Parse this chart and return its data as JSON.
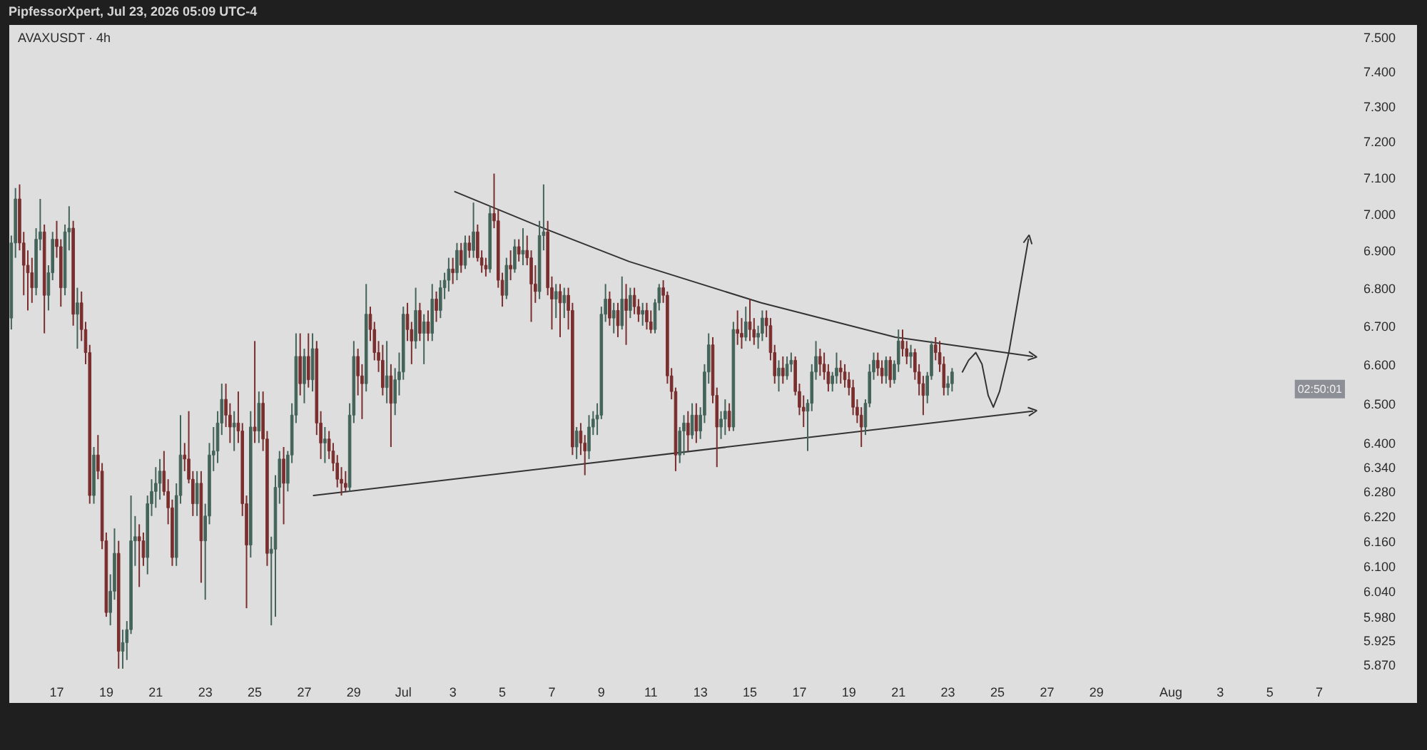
{
  "chart_data": {
    "type": "candlestick",
    "title": "AVAXUSDT · 4h",
    "annotations": [
      "PipfessorXpert, Jul 23, 2026 05:09 UTC-4",
      "02:50:01"
    ],
    "log": true,
    "grid": false,
    "xlim": [
      "2026-06-15T02:00",
      "2026-08-08T05:00"
    ],
    "ylim": [
      5.855,
      7.535
    ],
    "xticks": [
      {
        "value": "2026-06-17",
        "label": "17"
      },
      {
        "value": "2026-06-19",
        "label": "19"
      },
      {
        "value": "2026-06-21",
        "label": "21"
      },
      {
        "value": "2026-06-23",
        "label": "23"
      },
      {
        "value": "2026-06-25",
        "label": "25"
      },
      {
        "value": "2026-06-27",
        "label": "27"
      },
      {
        "value": "2026-06-29",
        "label": "29"
      },
      {
        "value": "2026-07-01",
        "label": "Jul"
      },
      {
        "value": "2026-07-03",
        "label": "3"
      },
      {
        "value": "2026-07-05",
        "label": "5"
      },
      {
        "value": "2026-07-07",
        "label": "7"
      },
      {
        "value": "2026-07-09",
        "label": "9"
      },
      {
        "value": "2026-07-11",
        "label": "11"
      },
      {
        "value": "2026-07-13",
        "label": "13"
      },
      {
        "value": "2026-07-15",
        "label": "15"
      },
      {
        "value": "2026-07-17",
        "label": "17"
      },
      {
        "value": "2026-07-19",
        "label": "19"
      },
      {
        "value": "2026-07-21",
        "label": "21"
      },
      {
        "value": "2026-07-23",
        "label": "23"
      },
      {
        "value": "2026-07-25",
        "label": "25"
      },
      {
        "value": "2026-07-27",
        "label": "27"
      },
      {
        "value": "2026-07-29",
        "label": "29"
      },
      {
        "value": "2026-08-01",
        "label": "Aug"
      },
      {
        "value": "2026-08-03",
        "label": "3"
      },
      {
        "value": "2026-08-05",
        "label": "5"
      },
      {
        "value": "2026-08-07",
        "label": "7"
      }
    ],
    "yticks": [
      {
        "value": 7.5,
        "label": "7.500"
      },
      {
        "value": 7.4,
        "label": "7.400"
      },
      {
        "value": 7.3,
        "label": "7.300"
      },
      {
        "value": 7.2,
        "label": "7.200"
      },
      {
        "value": 7.1,
        "label": "7.100"
      },
      {
        "value": 7.0,
        "label": "7.000"
      },
      {
        "value": 6.9,
        "label": "6.900"
      },
      {
        "value": 6.8,
        "label": "6.800"
      },
      {
        "value": 6.7,
        "label": "6.700"
      },
      {
        "value": 6.6,
        "label": "6.600"
      },
      {
        "value": 6.5,
        "label": "6.500"
      },
      {
        "value": 6.4,
        "label": "6.400"
      },
      {
        "value": 6.34,
        "label": "6.340"
      },
      {
        "value": 6.28,
        "label": "6.280"
      },
      {
        "value": 6.22,
        "label": "6.220"
      },
      {
        "value": 6.16,
        "label": "6.160"
      },
      {
        "value": 6.1,
        "label": "6.100"
      },
      {
        "value": 6.04,
        "label": "6.040"
      },
      {
        "value": 5.98,
        "label": "5.980"
      },
      {
        "value": 5.925,
        "label": "5.925"
      },
      {
        "value": 5.87,
        "label": "5.870"
      }
    ],
    "x": [
      "2026-06-15T04:00",
      "2026-06-15T08:00",
      "2026-06-15T12:00",
      "2026-06-15T16:00",
      "2026-06-15T20:00",
      "2026-06-16T00:00",
      "2026-06-16T04:00",
      "2026-06-16T08:00",
      "2026-06-16T12:00",
      "2026-06-16T16:00",
      "2026-06-16T20:00",
      "2026-06-17T00:00",
      "2026-06-17T04:00",
      "2026-06-17T08:00",
      "2026-06-17T12:00",
      "2026-06-17T16:00",
      "2026-06-17T20:00",
      "2026-06-18T00:00",
      "2026-06-18T04:00",
      "2026-06-18T08:00",
      "2026-06-18T12:00",
      "2026-06-18T16:00",
      "2026-06-18T20:00",
      "2026-06-19T00:00",
      "2026-06-19T04:00",
      "2026-06-19T08:00",
      "2026-06-19T12:00",
      "2026-06-19T16:00",
      "2026-06-19T20:00",
      "2026-06-20T00:00",
      "2026-06-20T04:00",
      "2026-06-20T08:00",
      "2026-06-20T12:00",
      "2026-06-20T16:00",
      "2026-06-20T20:00",
      "2026-06-21T00:00",
      "2026-06-21T04:00",
      "2026-06-21T08:00",
      "2026-06-21T12:00",
      "2026-06-21T16:00",
      "2026-06-21T20:00",
      "2026-06-22T00:00",
      "2026-06-22T04:00",
      "2026-06-22T08:00",
      "2026-06-22T12:00",
      "2026-06-22T16:00",
      "2026-06-22T20:00",
      "2026-06-23T00:00",
      "2026-06-23T04:00",
      "2026-06-23T08:00",
      "2026-06-23T12:00",
      "2026-06-23T16:00",
      "2026-06-23T20:00",
      "2026-06-24T00:00",
      "2026-06-24T04:00",
      "2026-06-24T08:00",
      "2026-06-24T12:00",
      "2026-06-24T16:00",
      "2026-06-24T20:00",
      "2026-06-25T00:00",
      "2026-06-25T04:00",
      "2026-06-25T08:00",
      "2026-06-25T12:00",
      "2026-06-25T16:00",
      "2026-06-25T20:00",
      "2026-06-26T00:00",
      "2026-06-26T04:00",
      "2026-06-26T08:00",
      "2026-06-26T12:00",
      "2026-06-26T16:00",
      "2026-06-26T20:00",
      "2026-06-27T00:00",
      "2026-06-27T04:00",
      "2026-06-27T08:00",
      "2026-06-27T12:00",
      "2026-06-27T16:00",
      "2026-06-27T20:00",
      "2026-06-28T00:00",
      "2026-06-28T04:00",
      "2026-06-28T08:00",
      "2026-06-28T12:00",
      "2026-06-28T16:00",
      "2026-06-28T20:00",
      "2026-06-29T00:00",
      "2026-06-29T04:00",
      "2026-06-29T08:00",
      "2026-06-29T12:00",
      "2026-06-29T16:00",
      "2026-06-29T20:00",
      "2026-06-30T00:00",
      "2026-06-30T04:00",
      "2026-06-30T08:00",
      "2026-06-30T12:00",
      "2026-06-30T16:00",
      "2026-06-30T20:00",
      "2026-07-01T00:00",
      "2026-07-01T04:00",
      "2026-07-01T08:00",
      "2026-07-01T12:00",
      "2026-07-01T16:00",
      "2026-07-01T20:00",
      "2026-07-02T00:00",
      "2026-07-02T04:00",
      "2026-07-02T08:00",
      "2026-07-02T12:00",
      "2026-07-02T16:00",
      "2026-07-02T20:00",
      "2026-07-03T00:00",
      "2026-07-03T04:00",
      "2026-07-03T08:00",
      "2026-07-03T12:00",
      "2026-07-03T16:00",
      "2026-07-03T20:00",
      "2026-07-04T00:00",
      "2026-07-04T04:00",
      "2026-07-04T08:00",
      "2026-07-04T12:00",
      "2026-07-04T16:00",
      "2026-07-04T20:00",
      "2026-07-05T00:00",
      "2026-07-05T04:00",
      "2026-07-05T08:00",
      "2026-07-05T12:00",
      "2026-07-05T16:00",
      "2026-07-05T20:00",
      "2026-07-06T00:00",
      "2026-07-06T04:00",
      "2026-07-06T08:00",
      "2026-07-06T12:00",
      "2026-07-06T16:00",
      "2026-07-06T20:00",
      "2026-07-07T00:00",
      "2026-07-07T04:00",
      "2026-07-07T08:00",
      "2026-07-07T12:00",
      "2026-07-07T16:00",
      "2026-07-07T20:00",
      "2026-07-08T00:00",
      "2026-07-08T04:00",
      "2026-07-08T08:00",
      "2026-07-08T12:00",
      "2026-07-08T16:00",
      "2026-07-08T20:00",
      "2026-07-09T00:00",
      "2026-07-09T04:00",
      "2026-07-09T08:00",
      "2026-07-09T12:00",
      "2026-07-09T16:00",
      "2026-07-09T20:00",
      "2026-07-10T00:00",
      "2026-07-10T04:00",
      "2026-07-10T08:00",
      "2026-07-10T12:00",
      "2026-07-10T16:00",
      "2026-07-10T20:00",
      "2026-07-11T00:00",
      "2026-07-11T04:00",
      "2026-07-11T08:00",
      "2026-07-11T12:00",
      "2026-07-11T16:00",
      "2026-07-11T20:00",
      "2026-07-12T00:00",
      "2026-07-12T04:00",
      "2026-07-12T08:00",
      "2026-07-12T12:00",
      "2026-07-12T16:00",
      "2026-07-12T20:00",
      "2026-07-13T00:00",
      "2026-07-13T04:00",
      "2026-07-13T08:00",
      "2026-07-13T12:00",
      "2026-07-13T16:00",
      "2026-07-13T20:00",
      "2026-07-14T00:00",
      "2026-07-14T04:00",
      "2026-07-14T08:00",
      "2026-07-14T12:00",
      "2026-07-14T16:00",
      "2026-07-14T20:00",
      "2026-07-15T00:00",
      "2026-07-15T04:00",
      "2026-07-15T08:00",
      "2026-07-15T12:00",
      "2026-07-15T16:00",
      "2026-07-15T20:00",
      "2026-07-16T00:00",
      "2026-07-16T04:00",
      "2026-07-16T08:00",
      "2026-07-16T12:00",
      "2026-07-16T16:00",
      "2026-07-16T20:00",
      "2026-07-17T00:00",
      "2026-07-17T04:00",
      "2026-07-17T08:00",
      "2026-07-17T12:00",
      "2026-07-17T16:00",
      "2026-07-17T20:00",
      "2026-07-18T00:00",
      "2026-07-18T04:00",
      "2026-07-18T08:00",
      "2026-07-18T12:00",
      "2026-07-18T16:00",
      "2026-07-18T20:00",
      "2026-07-19T00:00",
      "2026-07-19T04:00",
      "2026-07-19T08:00",
      "2026-07-19T12:00",
      "2026-07-19T16:00",
      "2026-07-19T20:00",
      "2026-07-20T00:00",
      "2026-07-20T04:00",
      "2026-07-20T08:00",
      "2026-07-20T12:00",
      "2026-07-20T16:00",
      "2026-07-20T20:00",
      "2026-07-21T00:00",
      "2026-07-21T04:00",
      "2026-07-21T08:00",
      "2026-07-21T12:00",
      "2026-07-21T16:00",
      "2026-07-21T20:00",
      "2026-07-22T00:00",
      "2026-07-22T04:00",
      "2026-07-22T08:00",
      "2026-07-22T12:00",
      "2026-07-22T16:00",
      "2026-07-22T20:00",
      "2026-07-23T00:00",
      "2026-07-23T04:00"
    ],
    "ohlc": [
      [
        6.72,
        6.94,
        6.69,
        6.92
      ],
      [
        6.92,
        7.07,
        6.88,
        7.04
      ],
      [
        7.04,
        7.08,
        6.9,
        6.92
      ],
      [
        6.92,
        6.95,
        6.78,
        6.86
      ],
      [
        6.86,
        6.9,
        6.74,
        6.84
      ],
      [
        6.84,
        6.88,
        6.76,
        6.8
      ],
      [
        6.8,
        6.96,
        6.78,
        6.93
      ],
      [
        6.93,
        7.04,
        6.9,
        6.95
      ],
      [
        6.95,
        6.97,
        6.68,
        6.78
      ],
      [
        6.78,
        6.86,
        6.74,
        6.84
      ],
      [
        6.84,
        6.95,
        6.82,
        6.93
      ],
      [
        6.93,
        6.98,
        6.88,
        6.91
      ],
      [
        6.91,
        6.93,
        6.75,
        6.8
      ],
      [
        6.8,
        6.97,
        6.78,
        6.95
      ],
      [
        6.95,
        7.02,
        6.9,
        6.96
      ],
      [
        6.96,
        6.98,
        6.7,
        6.73
      ],
      [
        6.73,
        6.8,
        6.64,
        6.76
      ],
      [
        6.76,
        6.79,
        6.66,
        6.69
      ],
      [
        6.69,
        6.71,
        6.6,
        6.63
      ],
      [
        6.63,
        6.65,
        6.25,
        6.27
      ],
      [
        6.27,
        6.39,
        6.25,
        6.37
      ],
      [
        6.37,
        6.42,
        6.31,
        6.33
      ],
      [
        6.33,
        6.35,
        6.14,
        6.16
      ],
      [
        6.16,
        6.18,
        5.98,
        5.99
      ],
      [
        5.99,
        6.08,
        5.96,
        6.04
      ],
      [
        6.04,
        6.19,
        6.02,
        6.13
      ],
      [
        6.13,
        6.16,
        5.86,
        5.9
      ],
      [
        5.9,
        5.95,
        5.86,
        5.92
      ],
      [
        5.92,
        5.97,
        5.88,
        5.95
      ],
      [
        5.95,
        6.27,
        5.94,
        6.16
      ],
      [
        6.16,
        6.22,
        6.1,
        6.17
      ],
      [
        6.17,
        6.2,
        6.05,
        6.16
      ],
      [
        6.16,
        6.18,
        6.1,
        6.12
      ],
      [
        6.12,
        6.27,
        6.08,
        6.25
      ],
      [
        6.25,
        6.31,
        6.22,
        6.28
      ],
      [
        6.28,
        6.34,
        6.24,
        6.3
      ],
      [
        6.3,
        6.36,
        6.26,
        6.33
      ],
      [
        6.33,
        6.38,
        6.27,
        6.28
      ],
      [
        6.28,
        6.31,
        6.2,
        6.24
      ],
      [
        6.24,
        6.26,
        6.1,
        6.12
      ],
      [
        6.12,
        6.3,
        6.1,
        6.27
      ],
      [
        6.27,
        6.47,
        6.25,
        6.37
      ],
      [
        6.37,
        6.4,
        6.33,
        6.36
      ],
      [
        6.36,
        6.48,
        6.3,
        6.31
      ],
      [
        6.31,
        6.33,
        6.22,
        6.25
      ],
      [
        6.25,
        6.33,
        6.22,
        6.3
      ],
      [
        6.3,
        6.33,
        6.06,
        6.16
      ],
      [
        6.16,
        6.25,
        6.02,
        6.22
      ],
      [
        6.22,
        6.4,
        6.2,
        6.37
      ],
      [
        6.37,
        6.44,
        6.33,
        6.38
      ],
      [
        6.38,
        6.48,
        6.35,
        6.45
      ],
      [
        6.45,
        6.55,
        6.42,
        6.51
      ],
      [
        6.51,
        6.55,
        6.44,
        6.47
      ],
      [
        6.47,
        6.5,
        6.4,
        6.44
      ],
      [
        6.44,
        6.48,
        6.38,
        6.45
      ],
      [
        6.45,
        6.53,
        6.4,
        6.43
      ],
      [
        6.43,
        6.45,
        6.22,
        6.25
      ],
      [
        6.25,
        6.27,
        6.0,
        6.15
      ],
      [
        6.15,
        6.48,
        6.12,
        6.44
      ],
      [
        6.44,
        6.66,
        6.4,
        6.43
      ],
      [
        6.43,
        6.53,
        6.4,
        6.5
      ],
      [
        6.5,
        6.53,
        6.38,
        6.41
      ],
      [
        6.41,
        6.43,
        6.1,
        6.13
      ],
      [
        6.13,
        6.17,
        5.96,
        6.14
      ],
      [
        6.14,
        6.32,
        5.98,
        6.29
      ],
      [
        6.29,
        6.38,
        6.25,
        6.36
      ],
      [
        6.36,
        6.39,
        6.2,
        6.3
      ],
      [
        6.3,
        6.38,
        6.28,
        6.37
      ],
      [
        6.37,
        6.5,
        6.35,
        6.47
      ],
      [
        6.47,
        6.68,
        6.45,
        6.62
      ],
      [
        6.62,
        6.68,
        6.52,
        6.55
      ],
      [
        6.55,
        6.64,
        6.5,
        6.62
      ],
      [
        6.62,
        6.68,
        6.54,
        6.56
      ],
      [
        6.56,
        6.68,
        6.53,
        6.64
      ],
      [
        6.64,
        6.66,
        6.42,
        6.45
      ],
      [
        6.45,
        6.48,
        6.36,
        6.4
      ],
      [
        6.4,
        6.44,
        6.35,
        6.41
      ],
      [
        6.41,
        6.43,
        6.36,
        6.38
      ],
      [
        6.38,
        6.4,
        6.33,
        6.35
      ],
      [
        6.35,
        6.37,
        6.29,
        6.31
      ],
      [
        6.31,
        6.34,
        6.27,
        6.3
      ],
      [
        6.3,
        6.33,
        6.28,
        6.29
      ],
      [
        6.29,
        6.5,
        6.28,
        6.47
      ],
      [
        6.47,
        6.66,
        6.45,
        6.62
      ],
      [
        6.62,
        6.64,
        6.52,
        6.57
      ],
      [
        6.57,
        6.6,
        6.46,
        6.55
      ],
      [
        6.55,
        6.81,
        6.53,
        6.73
      ],
      [
        6.73,
        6.75,
        6.66,
        6.69
      ],
      [
        6.69,
        6.71,
        6.61,
        6.63
      ],
      [
        6.63,
        6.66,
        6.58,
        6.61
      ],
      [
        6.61,
        6.65,
        6.52,
        6.54
      ],
      [
        6.54,
        6.66,
        6.5,
        6.57
      ],
      [
        6.57,
        6.6,
        6.39,
        6.5
      ],
      [
        6.5,
        6.59,
        6.47,
        6.56
      ],
      [
        6.56,
        6.63,
        6.52,
        6.58
      ],
      [
        6.58,
        6.75,
        6.56,
        6.73
      ],
      [
        6.73,
        6.76,
        6.66,
        6.69
      ],
      [
        6.69,
        6.71,
        6.6,
        6.66
      ],
      [
        6.66,
        6.8,
        6.64,
        6.74
      ],
      [
        6.74,
        6.76,
        6.66,
        6.68
      ],
      [
        6.68,
        6.73,
        6.6,
        6.71
      ],
      [
        6.71,
        6.74,
        6.66,
        6.68
      ],
      [
        6.68,
        6.81,
        6.66,
        6.77
      ],
      [
        6.77,
        6.79,
        6.71,
        6.74
      ],
      [
        6.74,
        6.82,
        6.72,
        6.8
      ],
      [
        6.8,
        6.84,
        6.77,
        6.82
      ],
      [
        6.82,
        6.88,
        6.79,
        6.85
      ],
      [
        6.85,
        6.88,
        6.81,
        6.84
      ],
      [
        6.84,
        6.92,
        6.82,
        6.9
      ],
      [
        6.9,
        6.92,
        6.84,
        6.86
      ],
      [
        6.86,
        6.94,
        6.85,
        6.92
      ],
      [
        6.92,
        6.94,
        6.88,
        6.9
      ],
      [
        6.9,
        7.03,
        6.88,
        6.95
      ],
      [
        6.95,
        6.97,
        6.87,
        6.88
      ],
      [
        6.88,
        6.9,
        6.84,
        6.86
      ],
      [
        6.86,
        6.88,
        6.83,
        6.85
      ],
      [
        6.85,
        7.02,
        6.84,
        7.0
      ],
      [
        7.0,
        7.11,
        6.96,
        6.98
      ],
      [
        6.98,
        7.01,
        6.8,
        6.82
      ],
      [
        6.82,
        6.84,
        6.75,
        6.78
      ],
      [
        6.78,
        6.88,
        6.77,
        6.86
      ],
      [
        6.86,
        6.9,
        6.82,
        6.85
      ],
      [
        6.85,
        6.93,
        6.84,
        6.91
      ],
      [
        6.91,
        6.93,
        6.87,
        6.89
      ],
      [
        6.89,
        6.96,
        6.86,
        6.9
      ],
      [
        6.9,
        6.94,
        6.86,
        6.88
      ],
      [
        6.88,
        6.9,
        6.71,
        6.81
      ],
      [
        6.81,
        6.86,
        6.76,
        6.79
      ],
      [
        6.79,
        6.98,
        6.77,
        6.94
      ],
      [
        6.94,
        7.08,
        6.9,
        6.95
      ],
      [
        6.95,
        6.98,
        6.78,
        6.8
      ],
      [
        6.8,
        6.83,
        6.69,
        6.77
      ],
      [
        6.77,
        6.81,
        6.72,
        6.79
      ],
      [
        6.79,
        6.81,
        6.67,
        6.76
      ],
      [
        6.76,
        6.8,
        6.72,
        6.78
      ],
      [
        6.78,
        6.8,
        6.69,
        6.74
      ],
      [
        6.74,
        6.76,
        6.37,
        6.39
      ],
      [
        6.39,
        6.44,
        6.36,
        6.43
      ],
      [
        6.43,
        6.45,
        6.37,
        6.4
      ],
      [
        6.4,
        6.42,
        6.32,
        6.38
      ],
      [
        6.38,
        6.47,
        6.36,
        6.44
      ],
      [
        6.44,
        6.48,
        6.42,
        6.46
      ],
      [
        6.46,
        6.5,
        6.42,
        6.47
      ],
      [
        6.47,
        6.75,
        6.46,
        6.73
      ],
      [
        6.73,
        6.81,
        6.71,
        6.77
      ],
      [
        6.77,
        6.79,
        6.7,
        6.72
      ],
      [
        6.72,
        6.76,
        6.68,
        6.74
      ],
      [
        6.74,
        6.76,
        6.67,
        6.7
      ],
      [
        6.7,
        6.83,
        6.69,
        6.77
      ],
      [
        6.77,
        6.81,
        6.65,
        6.74
      ],
      [
        6.74,
        6.8,
        6.72,
        6.78
      ],
      [
        6.78,
        6.8,
        6.73,
        6.75
      ],
      [
        6.75,
        6.77,
        6.71,
        6.73
      ],
      [
        6.73,
        6.76,
        6.7,
        6.74
      ],
      [
        6.74,
        6.76,
        6.69,
        6.71
      ],
      [
        6.71,
        6.74,
        6.68,
        6.69
      ],
      [
        6.69,
        6.77,
        6.68,
        6.76
      ],
      [
        6.76,
        6.81,
        6.74,
        6.8
      ],
      [
        6.8,
        6.82,
        6.76,
        6.78
      ],
      [
        6.78,
        6.79,
        6.55,
        6.57
      ],
      [
        6.57,
        6.59,
        6.51,
        6.53
      ],
      [
        6.53,
        6.54,
        6.33,
        6.37
      ],
      [
        6.37,
        6.44,
        6.35,
        6.43
      ],
      [
        6.43,
        6.47,
        6.37,
        6.45
      ],
      [
        6.45,
        6.48,
        6.38,
        6.42
      ],
      [
        6.42,
        6.5,
        6.41,
        6.47
      ],
      [
        6.47,
        6.5,
        6.4,
        6.43
      ],
      [
        6.43,
        6.49,
        6.41,
        6.47
      ],
      [
        6.47,
        6.6,
        6.45,
        6.58
      ],
      [
        6.58,
        6.68,
        6.55,
        6.65
      ],
      [
        6.65,
        6.67,
        6.5,
        6.52
      ],
      [
        6.52,
        6.54,
        6.34,
        6.44
      ],
      [
        6.44,
        6.48,
        6.41,
        6.46
      ],
      [
        6.46,
        6.51,
        6.42,
        6.48
      ],
      [
        6.48,
        6.5,
        6.43,
        6.44
      ],
      [
        6.44,
        6.71,
        6.43,
        6.69
      ],
      [
        6.69,
        6.74,
        6.65,
        6.68
      ],
      [
        6.68,
        6.72,
        6.64,
        6.67
      ],
      [
        6.67,
        6.75,
        6.66,
        6.71
      ],
      [
        6.71,
        6.77,
        6.66,
        6.69
      ],
      [
        6.69,
        6.72,
        6.65,
        6.67
      ],
      [
        6.67,
        6.7,
        6.64,
        6.68
      ],
      [
        6.68,
        6.74,
        6.66,
        6.72
      ],
      [
        6.72,
        6.74,
        6.67,
        6.7
      ],
      [
        6.7,
        6.72,
        6.61,
        6.63
      ],
      [
        6.63,
        6.65,
        6.55,
        6.57
      ],
      [
        6.57,
        6.61,
        6.53,
        6.59
      ],
      [
        6.59,
        6.62,
        6.55,
        6.57
      ],
      [
        6.57,
        6.62,
        6.56,
        6.6
      ],
      [
        6.6,
        6.63,
        6.58,
        6.61
      ],
      [
        6.61,
        6.62,
        6.52,
        6.53
      ],
      [
        6.53,
        6.55,
        6.47,
        6.49
      ],
      [
        6.49,
        6.52,
        6.44,
        6.48
      ],
      [
        6.48,
        6.51,
        6.38,
        6.5
      ],
      [
        6.5,
        6.6,
        6.48,
        6.58
      ],
      [
        6.58,
        6.66,
        6.56,
        6.62
      ],
      [
        6.62,
        6.64,
        6.57,
        6.6
      ],
      [
        6.6,
        6.63,
        6.56,
        6.58
      ],
      [
        6.58,
        6.6,
        6.53,
        6.55
      ],
      [
        6.55,
        6.58,
        6.53,
        6.57
      ],
      [
        6.57,
        6.63,
        6.55,
        6.59
      ],
      [
        6.59,
        6.61,
        6.55,
        6.58
      ],
      [
        6.58,
        6.6,
        6.54,
        6.56
      ],
      [
        6.56,
        6.58,
        6.52,
        6.54
      ],
      [
        6.54,
        6.56,
        6.47,
        6.49
      ],
      [
        6.49,
        6.51,
        6.45,
        6.47
      ],
      [
        6.47,
        6.49,
        6.39,
        6.44
      ],
      [
        6.44,
        6.51,
        6.42,
        6.5
      ],
      [
        6.5,
        6.6,
        6.49,
        6.58
      ],
      [
        6.58,
        6.63,
        6.56,
        6.61
      ],
      [
        6.61,
        6.63,
        6.57,
        6.59
      ],
      [
        6.59,
        6.61,
        6.55,
        6.57
      ],
      [
        6.57,
        6.62,
        6.55,
        6.61
      ],
      [
        6.61,
        6.62,
        6.54,
        6.56
      ],
      [
        6.56,
        6.61,
        6.55,
        6.6
      ],
      [
        6.6,
        6.69,
        6.58,
        6.66
      ],
      [
        6.66,
        6.69,
        6.62,
        6.64
      ],
      [
        6.64,
        6.66,
        6.6,
        6.62
      ],
      [
        6.62,
        6.65,
        6.59,
        6.63
      ],
      [
        6.63,
        6.64,
        6.56,
        6.58
      ],
      [
        6.58,
        6.6,
        6.52,
        6.55
      ],
      [
        6.55,
        6.57,
        6.47,
        6.52
      ],
      [
        6.52,
        6.58,
        6.5,
        6.57
      ],
      [
        6.57,
        6.66,
        6.56,
        6.65
      ],
      [
        6.65,
        6.67,
        6.61,
        6.63
      ],
      [
        6.63,
        6.66,
        6.58,
        6.6
      ],
      [
        6.6,
        6.62,
        6.52,
        6.54
      ],
      [
        6.54,
        6.57,
        6.52,
        6.55
      ],
      [
        6.55,
        6.59,
        6.53,
        6.58
      ]
    ],
    "colors": [
      "#44645a",
      "#44645a",
      "#7a2e2e",
      "#7a2e2e",
      "#7a2e2e",
      "#7a2e2e",
      "#44645a",
      "#44645a",
      "#7a2e2e",
      "#44645a",
      "#44645a",
      "#7a2e2e",
      "#7a2e2e",
      "#44645a",
      "#44645a",
      "#7a2e2e",
      "#44645a",
      "#7a2e2e",
      "#7a2e2e",
      "#7a2e2e",
      "#44645a",
      "#7a2e2e",
      "#7a2e2e",
      "#7a2e2e",
      "#44645a",
      "#44645a",
      "#7a2e2e",
      "#44645a",
      "#44645a",
      "#44645a",
      "#44645a",
      "#7a2e2e",
      "#7a2e2e",
      "#44645a",
      "#44645a",
      "#44645a",
      "#44645a",
      "#7a2e2e",
      "#7a2e2e",
      "#7a2e2e",
      "#44645a",
      "#44645a",
      "#7a2e2e",
      "#7a2e2e",
      "#7a2e2e",
      "#44645a",
      "#7a2e2e",
      "#44645a",
      "#44645a",
      "#44645a",
      "#44645a",
      "#44645a",
      "#7a2e2e",
      "#7a2e2e",
      "#44645a",
      "#7a2e2e",
      "#7a2e2e",
      "#7a2e2e",
      "#44645a",
      "#7a2e2e",
      "#44645a",
      "#7a2e2e",
      "#7a2e2e",
      "#44645a",
      "#44645a",
      "#44645a",
      "#7a2e2e",
      "#44645a",
      "#44645a",
      "#44645a",
      "#7a2e2e",
      "#44645a",
      "#7a2e2e",
      "#44645a",
      "#7a2e2e",
      "#7a2e2e",
      "#44645a",
      "#7a2e2e",
      "#7a2e2e",
      "#7a2e2e",
      "#7a2e2e",
      "#7a2e2e",
      "#44645a",
      "#44645a",
      "#7a2e2e",
      "#7a2e2e",
      "#44645a",
      "#7a2e2e",
      "#7a2e2e",
      "#7a2e2e",
      "#7a2e2e",
      "#44645a",
      "#7a2e2e",
      "#44645a",
      "#44645a",
      "#44645a",
      "#7a2e2e",
      "#7a2e2e",
      "#44645a",
      "#7a2e2e",
      "#44645a",
      "#7a2e2e",
      "#44645a",
      "#7a2e2e",
      "#44645a",
      "#44645a",
      "#44645a",
      "#7a2e2e",
      "#44645a",
      "#7a2e2e",
      "#44645a",
      "#7a2e2e",
      "#44645a",
      "#7a2e2e",
      "#7a2e2e",
      "#7a2e2e",
      "#44645a",
      "#7a2e2e",
      "#7a2e2e",
      "#7a2e2e",
      "#44645a",
      "#7a2e2e",
      "#44645a",
      "#7a2e2e",
      "#44645a",
      "#7a2e2e",
      "#7a2e2e",
      "#7a2e2e",
      "#44645a",
      "#44645a",
      "#7a2e2e",
      "#7a2e2e",
      "#44645a",
      "#7a2e2e",
      "#44645a",
      "#7a2e2e",
      "#7a2e2e",
      "#44645a",
      "#7a2e2e",
      "#7a2e2e",
      "#44645a",
      "#44645a",
      "#44645a",
      "#44645a",
      "#44645a",
      "#7a2e2e",
      "#44645a",
      "#7a2e2e",
      "#44645a",
      "#7a2e2e",
      "#44645a",
      "#7a2e2e",
      "#7a2e2e",
      "#44645a",
      "#7a2e2e",
      "#7a2e2e",
      "#44645a",
      "#44645a",
      "#7a2e2e",
      "#7a2e2e",
      "#7a2e2e",
      "#7a2e2e",
      "#44645a",
      "#44645a",
      "#7a2e2e",
      "#44645a",
      "#7a2e2e",
      "#44645a",
      "#44645a",
      "#44645a",
      "#7a2e2e",
      "#7a2e2e",
      "#44645a",
      "#44645a",
      "#7a2e2e",
      "#44645a",
      "#7a2e2e",
      "#7a2e2e",
      "#44645a",
      "#7a2e2e",
      "#7a2e2e",
      "#44645a",
      "#44645a",
      "#7a2e2e",
      "#7a2e2e",
      "#7a2e2e",
      "#44645a",
      "#7a2e2e",
      "#44645a",
      "#44645a",
      "#7a2e2e",
      "#7a2e2e",
      "#7a2e2e",
      "#44645a",
      "#44645a",
      "#44645a",
      "#7a2e2e",
      "#7a2e2e",
      "#7a2e2e",
      "#44645a",
      "#44645a",
      "#7a2e2e",
      "#7a2e2e",
      "#7a2e2e",
      "#7a2e2e",
      "#7a2e2e",
      "#7a2e2e",
      "#44645a",
      "#44645a",
      "#44645a",
      "#7a2e2e",
      "#7a2e2e",
      "#44645a",
      "#7a2e2e",
      "#44645a",
      "#44645a",
      "#7a2e2e",
      "#7a2e2e",
      "#44645a",
      "#7a2e2e",
      "#7a2e2e",
      "#7a2e2e",
      "#44645a",
      "#44645a",
      "#7a2e2e",
      "#7a2e2e",
      "#7a2e2e",
      "#44645a",
      "#44645a"
    ],
    "series": [
      {
        "type": "line",
        "color": "#333333",
        "x": [
          "2026-07-03T02:00",
          "2026-07-06T16:00",
          "2026-07-10T03:00",
          "2026-07-15T11:00",
          "2026-07-20T21:00",
          "2026-07-26T10:00"
        ],
        "values": [
          7.06,
          6.96,
          6.87,
          6.76,
          6.67,
          6.62
        ]
      },
      {
        "type": "line",
        "color": "#333333",
        "x": [
          "2026-06-27T09:00",
          "2026-07-26T10:00"
        ],
        "values": [
          6.27,
          6.48
        ]
      },
      {
        "type": "line",
        "color": "#333333",
        "x": [
          "2026-07-23T14:00",
          "2026-07-23T20:00",
          "2026-07-24T03:00",
          "2026-07-24T09:00",
          "2026-07-24T15:00",
          "2026-07-24T20:00",
          "2026-07-25T02:00",
          "2026-07-25T11:00",
          "2026-07-25T20:00",
          "2026-07-26T06:00"
        ],
        "values": [
          6.58,
          6.61,
          6.63,
          6.6,
          6.52,
          6.49,
          6.53,
          6.63,
          6.77,
          6.93
        ]
      }
    ]
  }
}
